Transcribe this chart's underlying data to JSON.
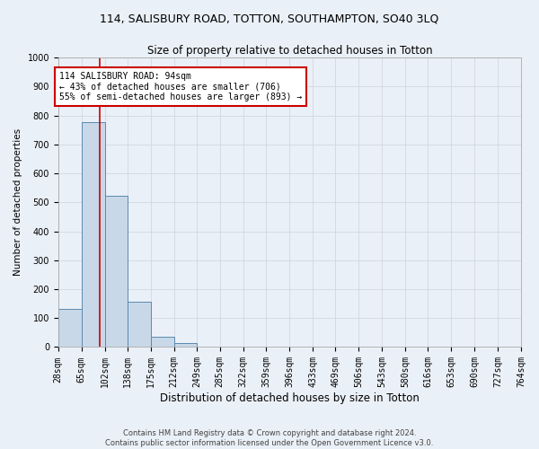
{
  "title": "114, SALISBURY ROAD, TOTTON, SOUTHAMPTON, SO40 3LQ",
  "subtitle": "Size of property relative to detached houses in Totton",
  "xlabel": "Distribution of detached houses by size in Totton",
  "ylabel": "Number of detached properties",
  "footer_line1": "Contains HM Land Registry data © Crown copyright and database right 2024.",
  "footer_line2": "Contains public sector information licensed under the Open Government Licence v3.0.",
  "bin_edges": [
    28,
    65,
    102,
    138,
    175,
    212,
    249,
    285,
    322,
    359,
    396,
    433,
    469,
    506,
    543,
    580,
    616,
    653,
    690,
    727,
    764
  ],
  "bar_heights": [
    133,
    778,
    524,
    158,
    37,
    13,
    0,
    0,
    0,
    0,
    0,
    0,
    0,
    0,
    0,
    0,
    0,
    0,
    0,
    0
  ],
  "bar_color": "#c8d8e8",
  "bar_edgecolor": "#5a8ab0",
  "grid_color": "#d0d8e0",
  "annotation_text": "114 SALISBURY ROAD: 94sqm\n← 43% of detached houses are smaller (706)\n55% of semi-detached houses are larger (893) →",
  "property_line_x": 94,
  "annotation_box_color": "#ffffff",
  "annotation_box_edgecolor": "#cc0000",
  "property_line_color": "#cc0000",
  "ylim": [
    0,
    1000
  ],
  "xlim": [
    28,
    764
  ],
  "background_color": "#eaf0f7",
  "title_fontsize": 9,
  "subtitle_fontsize": 8.5,
  "xlabel_fontsize": 8.5,
  "ylabel_fontsize": 7.5,
  "tick_fontsize": 7,
  "footer_fontsize": 6,
  "annotation_fontsize": 7
}
